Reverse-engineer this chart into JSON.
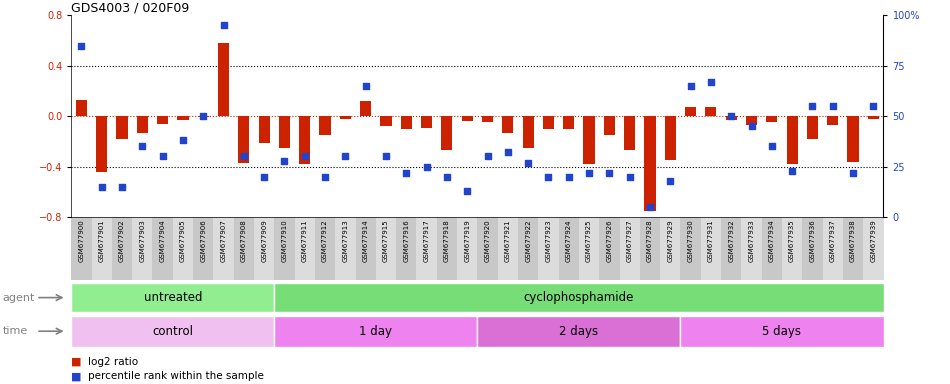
{
  "title": "GDS4003 / 020F09",
  "samples": [
    "GSM677900",
    "GSM677901",
    "GSM677902",
    "GSM677903",
    "GSM677904",
    "GSM677905",
    "GSM677906",
    "GSM677907",
    "GSM677908",
    "GSM677909",
    "GSM677910",
    "GSM677911",
    "GSM677912",
    "GSM677913",
    "GSM677914",
    "GSM677915",
    "GSM677916",
    "GSM677917",
    "GSM677918",
    "GSM677919",
    "GSM677920",
    "GSM677921",
    "GSM677922",
    "GSM677923",
    "GSM677924",
    "GSM677925",
    "GSM677926",
    "GSM677927",
    "GSM677928",
    "GSM677929",
    "GSM677930",
    "GSM677931",
    "GSM677932",
    "GSM677933",
    "GSM677934",
    "GSM677935",
    "GSM677936",
    "GSM677937",
    "GSM677938",
    "GSM677939"
  ],
  "log2_ratio": [
    0.13,
    -0.44,
    -0.18,
    -0.13,
    -0.06,
    -0.03,
    -0.01,
    0.58,
    -0.37,
    -0.21,
    -0.25,
    -0.38,
    -0.15,
    -0.02,
    0.12,
    -0.08,
    -0.1,
    -0.09,
    -0.27,
    -0.04,
    -0.05,
    -0.13,
    -0.25,
    -0.1,
    -0.1,
    -0.38,
    -0.15,
    -0.27,
    -0.75,
    -0.35,
    0.07,
    0.07,
    -0.03,
    -0.07,
    -0.05,
    -0.38,
    -0.18,
    -0.07,
    -0.36,
    -0.02
  ],
  "percentile": [
    85,
    15,
    15,
    35,
    30,
    38,
    50,
    95,
    30,
    20,
    28,
    30,
    20,
    30,
    65,
    30,
    22,
    25,
    20,
    13,
    30,
    32,
    27,
    20,
    20,
    22,
    22,
    20,
    5,
    18,
    65,
    67,
    50,
    45,
    35,
    23,
    55,
    55,
    22,
    55
  ],
  "bar_color": "#CC2200",
  "dot_color": "#2244CC",
  "ylim_left": [
    -0.8,
    0.8
  ],
  "ylim_right": [
    0,
    100
  ],
  "yticks_left": [
    -0.8,
    -0.4,
    0.0,
    0.4,
    0.8
  ],
  "yticks_right": [
    0,
    25,
    50,
    75,
    100
  ],
  "hlines": [
    0.4,
    0.0,
    -0.4
  ],
  "tick_colors": [
    "#C8C8C8",
    "#DCDCDC"
  ],
  "agent_bands": [
    {
      "label": "untreated",
      "start": 0,
      "end": 10,
      "color": "#90EE90"
    },
    {
      "label": "cyclophosphamide",
      "start": 10,
      "end": 40,
      "color": "#77DD77"
    }
  ],
  "time_bands": [
    {
      "label": "control",
      "start": 0,
      "end": 10,
      "color": "#F0C0F0"
    },
    {
      "label": "1 day",
      "start": 10,
      "end": 20,
      "color": "#EE82EE"
    },
    {
      "label": "2 days",
      "start": 20,
      "end": 30,
      "color": "#DA70D6"
    },
    {
      "label": "5 days",
      "start": 30,
      "end": 40,
      "color": "#EE82EE"
    }
  ],
  "legend": [
    {
      "label": "log2 ratio",
      "color": "#CC2200"
    },
    {
      "label": "percentile rank within the sample",
      "color": "#2244CC"
    }
  ]
}
